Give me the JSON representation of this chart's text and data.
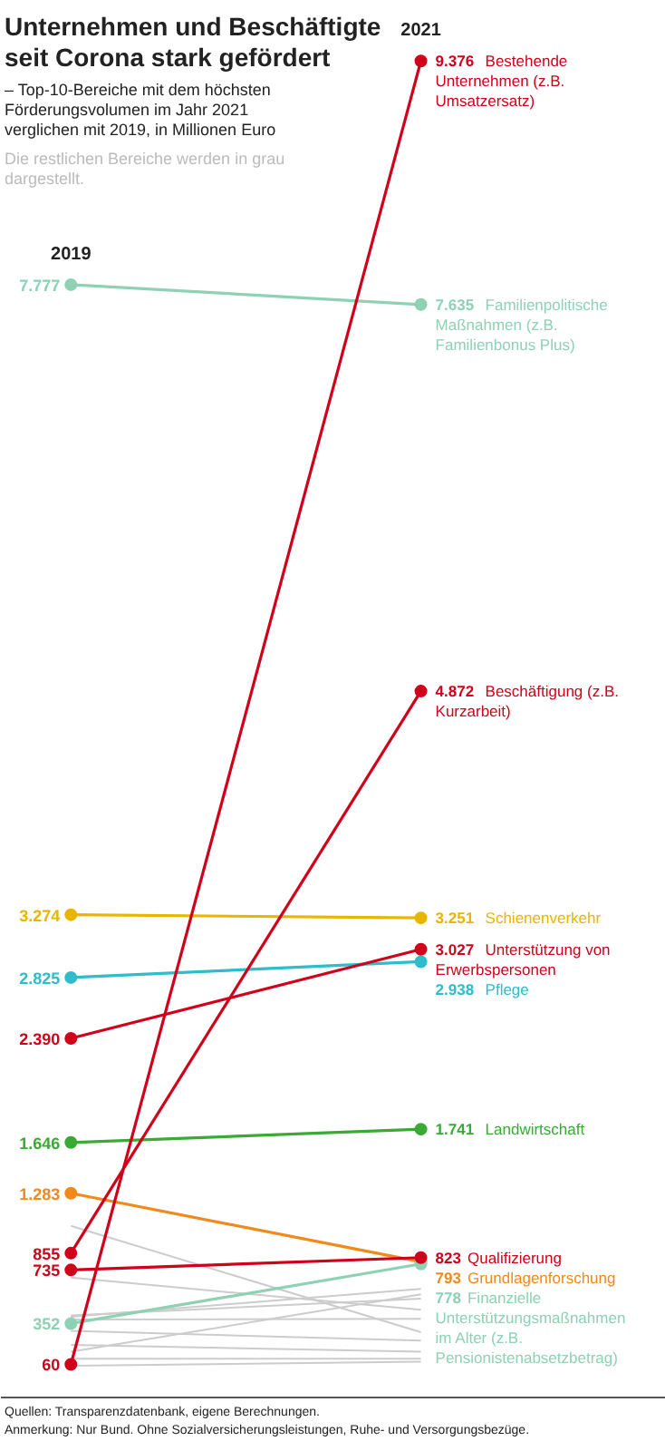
{
  "chart_data": {
    "type": "line",
    "title": "Unternehmen und Beschäftigte seit Corona stark gefördert",
    "subtitle": "– Top-10-Bereiche mit dem höchsten Förderungsvolumen im Jahr 2021 verglichen mit 2019, in Millionen Euro",
    "annotations": [
      "Die restlichen Bereiche werden in grau dargestellt.",
      "Quellen: Transparenzdatenbank, eigene Berechnungen.",
      "Anmerkung: Nur Bund. Ohne Sozialversicherungsleistungen, Ruhe- und Versorgungsbezüge."
    ],
    "categories": [
      "2019",
      "2021"
    ],
    "marker": "circle",
    "grid": false,
    "series": [
      {
        "color": "#cccccc",
        "marker": "none",
        "values": [
          1050,
          290
        ],
        "value_labels": [
          null,
          null
        ]
      },
      {
        "color": "#cccccc",
        "marker": "none",
        "values": [
          680,
          450
        ],
        "value_labels": [
          null,
          null
        ]
      },
      {
        "color": "#cccccc",
        "marker": "none",
        "values": [
          400,
          600
        ],
        "value_labels": [
          null,
          null
        ]
      },
      {
        "color": "#cccccc",
        "marker": "none",
        "values": [
          410,
          530
        ],
        "value_labels": [
          null,
          null
        ]
      },
      {
        "color": "#cccccc",
        "marker": "none",
        "values": [
          380,
          385
        ],
        "value_labels": [
          null,
          null
        ]
      },
      {
        "color": "#cccccc",
        "marker": "none",
        "values": [
          300,
          230
        ],
        "value_labels": [
          null,
          null
        ]
      },
      {
        "color": "#cccccc",
        "marker": "none",
        "values": [
          150,
          560
        ],
        "value_labels": [
          null,
          null
        ]
      },
      {
        "color": "#cccccc",
        "marker": "none",
        "values": [
          200,
          150
        ],
        "value_labels": [
          null,
          null
        ]
      },
      {
        "color": "#cccccc",
        "marker": "none",
        "values": [
          100,
          100
        ],
        "value_labels": [
          null,
          null
        ]
      },
      {
        "color": "#cccccc",
        "marker": "none",
        "values": [
          50,
          80
        ],
        "value_labels": [
          null,
          null
        ]
      },
      {
        "name": "Familienpolitische Maßnahmen (z.B. Familienbonus Plus)",
        "color": "#8fd1b5",
        "values": [
          7777,
          7635
        ],
        "value_labels": [
          "7.777",
          "7.635"
        ]
      },
      {
        "name": "Schienenverkehr",
        "color": "#e8b500",
        "values": [
          3274,
          3251
        ],
        "value_labels": [
          "3.274",
          "3.251"
        ]
      },
      {
        "name": "Pflege",
        "color": "#2fbccb",
        "values": [
          2825,
          2938
        ],
        "value_labels": [
          "2.825",
          "2.938"
        ]
      },
      {
        "name": "Landwirtschaft",
        "color": "#3aaa35",
        "values": [
          1646,
          1741
        ],
        "value_labels": [
          "1.646",
          "1.741"
        ]
      },
      {
        "name": "Grundlagenforschung",
        "color": "#f08a1c",
        "values": [
          1283,
          793
        ],
        "value_labels": [
          "1.283",
          "793"
        ]
      },
      {
        "name": "Finanzielle Unterstützungsmaßnahmen im Alter (z.B. Pensionistenabsetzbetrag)",
        "color": "#8fd1b5",
        "values": [
          352,
          778
        ],
        "value_labels": [
          "352",
          "778"
        ]
      },
      {
        "name": "Unterstützung von Erwerbspersonen",
        "color": "#d0021b",
        "values": [
          2390,
          3027
        ],
        "value_labels": [
          "2.390",
          "3.027"
        ]
      },
      {
        "name": "Qualifizierung",
        "color": "#d0021b",
        "values": [
          735,
          823
        ],
        "value_labels": [
          "735",
          "823"
        ]
      },
      {
        "name": "Beschäftigung (z.B. Kurzarbeit)",
        "color": "#d0021b",
        "values": [
          855,
          4872
        ],
        "value_labels": [
          "855",
          "4.872"
        ]
      },
      {
        "name": "Bestehende Unternehmen (z.B. Umsatzersatz)",
        "color": "#d0021b",
        "values": [
          60,
          9376
        ],
        "value_labels": [
          "60",
          "9.376"
        ]
      }
    ]
  }
}
